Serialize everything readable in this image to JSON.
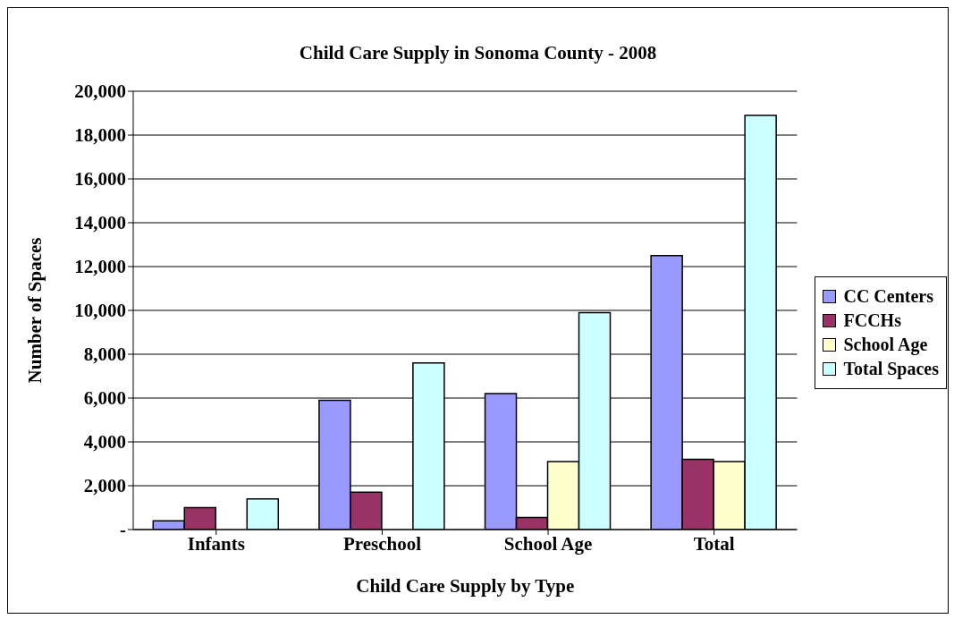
{
  "chart_data": {
    "type": "bar",
    "title": "Child Care Supply in Sonoma County - 2008",
    "xlabel": "Child Care Supply by Type",
    "ylabel": "Number of Spaces",
    "categories": [
      "Infants",
      "Preschool",
      "School Age",
      "Total"
    ],
    "series": [
      {
        "name": "CC Centers",
        "color": "#9999ff",
        "values": [
          400,
          5900,
          6200,
          12500
        ]
      },
      {
        "name": "FCCHs",
        "color": "#993366",
        "values": [
          1000,
          1700,
          550,
          3200
        ]
      },
      {
        "name": "School Age",
        "color": "#ffffcc",
        "values": [
          0,
          0,
          3100,
          3100
        ]
      },
      {
        "name": "Total Spaces",
        "color": "#ccffff",
        "values": [
          1400,
          7600,
          9900,
          18900
        ]
      }
    ],
    "ylim": [
      0,
      20000
    ],
    "yticks": [
      {
        "value": 0,
        "label": "-"
      },
      {
        "value": 2000,
        "label": "2,000"
      },
      {
        "value": 4000,
        "label": "4,000"
      },
      {
        "value": 6000,
        "label": "6,000"
      },
      {
        "value": 8000,
        "label": "8,000"
      },
      {
        "value": 10000,
        "label": "10,000"
      },
      {
        "value": 12000,
        "label": "12,000"
      },
      {
        "value": 14000,
        "label": "14,000"
      },
      {
        "value": 16000,
        "label": "16,000"
      },
      {
        "value": 18000,
        "label": "18,000"
      },
      {
        "value": 20000,
        "label": "20,000"
      }
    ],
    "grid": "y",
    "legend": "right"
  }
}
